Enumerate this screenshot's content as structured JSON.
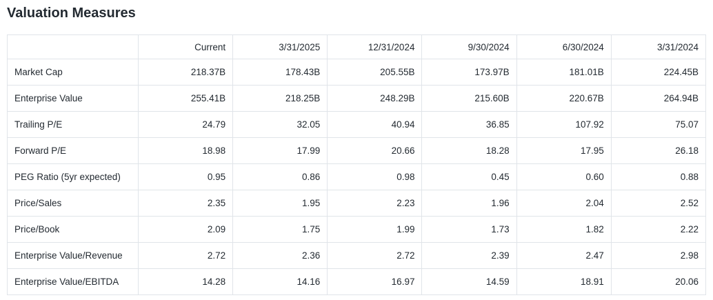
{
  "title": "Valuation Measures",
  "table": {
    "columns": [
      "",
      "Current",
      "3/31/2025",
      "12/31/2024",
      "9/30/2024",
      "6/30/2024",
      "3/31/2024"
    ],
    "rows": [
      {
        "label": "Market Cap",
        "values": [
          "218.37B",
          "178.43B",
          "205.55B",
          "173.97B",
          "181.01B",
          "224.45B"
        ]
      },
      {
        "label": "Enterprise Value",
        "values": [
          "255.41B",
          "218.25B",
          "248.29B",
          "215.60B",
          "220.67B",
          "264.94B"
        ]
      },
      {
        "label": "Trailing P/E",
        "values": [
          "24.79",
          "32.05",
          "40.94",
          "36.85",
          "107.92",
          "75.07"
        ]
      },
      {
        "label": "Forward P/E",
        "values": [
          "18.98",
          "17.99",
          "20.66",
          "18.28",
          "17.95",
          "26.18"
        ]
      },
      {
        "label": "PEG Ratio (5yr expected)",
        "values": [
          "0.95",
          "0.86",
          "0.98",
          "0.45",
          "0.60",
          "0.88"
        ]
      },
      {
        "label": "Price/Sales",
        "values": [
          "2.35",
          "1.95",
          "2.23",
          "1.96",
          "2.04",
          "2.52"
        ]
      },
      {
        "label": "Price/Book",
        "values": [
          "2.09",
          "1.75",
          "1.99",
          "1.73",
          "1.82",
          "2.22"
        ]
      },
      {
        "label": "Enterprise Value/Revenue",
        "values": [
          "2.72",
          "2.36",
          "2.72",
          "2.39",
          "2.47",
          "2.98"
        ]
      },
      {
        "label": "Enterprise Value/EBITDA",
        "values": [
          "14.28",
          "14.16",
          "16.97",
          "14.59",
          "18.91",
          "20.06"
        ]
      }
    ]
  },
  "colors": {
    "text": "#232a31",
    "border": "#e0e4e9",
    "background": "#ffffff"
  }
}
